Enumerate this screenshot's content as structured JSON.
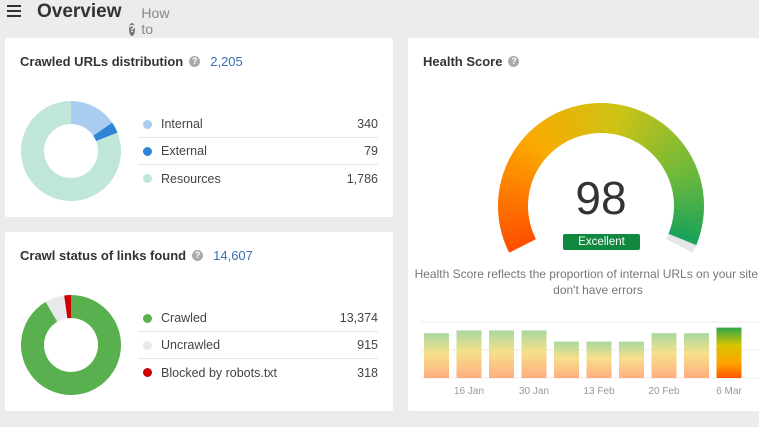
{
  "header": {
    "title": "Overview",
    "help_label": "How to use"
  },
  "crawled_urls": {
    "title": "Crawled URLs distribution",
    "total": "2,205",
    "items": [
      {
        "label": "Internal",
        "value": "340",
        "color": "#a9cdf0"
      },
      {
        "label": "External",
        "value": "79",
        "color": "#2f84d6"
      },
      {
        "label": "Resources",
        "value": "1,786",
        "color": "#bfe6d8"
      }
    ]
  },
  "crawl_status": {
    "title": "Crawl status of links found",
    "total": "14,607",
    "items": [
      {
        "label": "Crawled",
        "value": "13,374",
        "color": "#58b14e"
      },
      {
        "label": "Uncrawled",
        "value": "915",
        "color": "#e8e9eb"
      },
      {
        "label": "Blocked by robots.txt",
        "value": "318",
        "color": "#cc0000"
      }
    ]
  },
  "health": {
    "title": "Health Score",
    "score": "98",
    "score_value": 98,
    "rating": "Excellent",
    "description": "Health Score reflects the proportion of internal URLs on your site that don't have errors"
  },
  "chart_data": {
    "type": "bar",
    "values": [
      96,
      97,
      97,
      97,
      93,
      93,
      93,
      96,
      96,
      98
    ],
    "tick_labels": [
      "16 Jan",
      "30 Jan",
      "13 Feb",
      "20 Feb",
      "6 Mar"
    ],
    "ylim": [
      80,
      100
    ]
  }
}
